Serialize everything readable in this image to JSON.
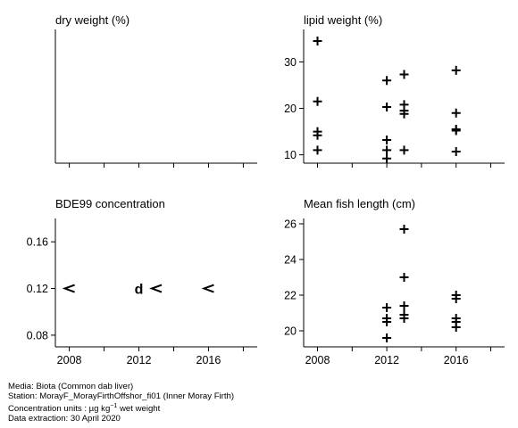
{
  "chart_data": [
    {
      "id": "dry",
      "type": "scatter",
      "title": "dry weight (%)",
      "xlim": [
        2007.2,
        2018.8
      ],
      "ylim": [
        0,
        1
      ],
      "x_ticks": [
        2008,
        2010,
        2012,
        2014,
        2016,
        2018
      ],
      "x_tick_labels": [],
      "y_ticks": [],
      "points": []
    },
    {
      "id": "lipid",
      "type": "scatter",
      "title": "lipid weight (%)",
      "xlim": [
        2007.2,
        2018.8
      ],
      "ylim": [
        8.2,
        37
      ],
      "x_ticks": [
        2008,
        2010,
        2012,
        2014,
        2016,
        2018
      ],
      "x_tick_labels": [],
      "y_ticks": [
        10,
        20,
        30
      ],
      "y_tick_labels": [
        "10",
        "20",
        "30"
      ],
      "points": [
        {
          "x": 2008,
          "y": 34.5,
          "symbol": "+"
        },
        {
          "x": 2008,
          "y": 21.5,
          "symbol": "+"
        },
        {
          "x": 2008,
          "y": 15.0,
          "symbol": "+"
        },
        {
          "x": 2008,
          "y": 14.2,
          "symbol": "+"
        },
        {
          "x": 2008,
          "y": 11.0,
          "symbol": "+"
        },
        {
          "x": 2012,
          "y": 26.0,
          "symbol": "+"
        },
        {
          "x": 2012,
          "y": 20.3,
          "symbol": "+"
        },
        {
          "x": 2012,
          "y": 13.2,
          "symbol": "+"
        },
        {
          "x": 2012,
          "y": 11.0,
          "symbol": "+"
        },
        {
          "x": 2012,
          "y": 9.2,
          "symbol": "+"
        },
        {
          "x": 2013,
          "y": 27.3,
          "symbol": "+"
        },
        {
          "x": 2013,
          "y": 20.8,
          "symbol": "+"
        },
        {
          "x": 2013,
          "y": 19.5,
          "symbol": "+"
        },
        {
          "x": 2013,
          "y": 18.8,
          "symbol": "+"
        },
        {
          "x": 2013,
          "y": 11.0,
          "symbol": "+"
        },
        {
          "x": 2016,
          "y": 28.2,
          "symbol": "+"
        },
        {
          "x": 2016,
          "y": 19.0,
          "symbol": "+"
        },
        {
          "x": 2016,
          "y": 15.5,
          "symbol": "+"
        },
        {
          "x": 2016,
          "y": 15.2,
          "symbol": "+"
        },
        {
          "x": 2016,
          "y": 10.7,
          "symbol": "+"
        }
      ]
    },
    {
      "id": "bde99",
      "type": "scatter",
      "title": "BDE99 concentration",
      "xlim": [
        2007.2,
        2018.8
      ],
      "ylim": [
        0.07,
        0.18
      ],
      "x_ticks": [
        2008,
        2010,
        2012,
        2014,
        2016,
        2018
      ],
      "x_tick_labels": [
        "2008",
        "",
        "2012",
        "",
        "2016",
        ""
      ],
      "y_ticks": [
        0.08,
        0.12,
        0.16
      ],
      "y_tick_labels": [
        "0.08",
        "0.12",
        "0.16"
      ],
      "points": [
        {
          "x": 2008,
          "y": 0.12,
          "symbol": "<"
        },
        {
          "x": 2012,
          "y": 0.12,
          "symbol": "d"
        },
        {
          "x": 2013,
          "y": 0.12,
          "symbol": "<"
        },
        {
          "x": 2016,
          "y": 0.12,
          "symbol": "<"
        }
      ]
    },
    {
      "id": "length",
      "type": "scatter",
      "title": "Mean fish length (cm)",
      "xlim": [
        2007.2,
        2018.8
      ],
      "ylim": [
        19.1,
        26.3
      ],
      "x_ticks": [
        2008,
        2010,
        2012,
        2014,
        2016,
        2018
      ],
      "x_tick_labels": [
        "2008",
        "",
        "2012",
        "",
        "2016",
        ""
      ],
      "y_ticks": [
        20,
        22,
        24,
        26
      ],
      "y_tick_labels": [
        "20",
        "22",
        "24",
        "26"
      ],
      "points": [
        {
          "x": 2012,
          "y": 21.3,
          "symbol": "+"
        },
        {
          "x": 2012,
          "y": 20.7,
          "symbol": "+"
        },
        {
          "x": 2012,
          "y": 20.5,
          "symbol": "+"
        },
        {
          "x": 2012,
          "y": 19.6,
          "symbol": "+"
        },
        {
          "x": 2013,
          "y": 25.7,
          "symbol": "+"
        },
        {
          "x": 2013,
          "y": 23.0,
          "symbol": "+"
        },
        {
          "x": 2013,
          "y": 21.4,
          "symbol": "+"
        },
        {
          "x": 2013,
          "y": 20.9,
          "symbol": "+"
        },
        {
          "x": 2013,
          "y": 20.7,
          "symbol": "+"
        },
        {
          "x": 2016,
          "y": 22.0,
          "symbol": "+"
        },
        {
          "x": 2016,
          "y": 21.8,
          "symbol": "+"
        },
        {
          "x": 2016,
          "y": 20.7,
          "symbol": "+"
        },
        {
          "x": 2016,
          "y": 20.5,
          "symbol": "+"
        },
        {
          "x": 2016,
          "y": 20.2,
          "symbol": "+"
        }
      ]
    }
  ],
  "footer": {
    "media": "Media: Biota (Common dab liver)",
    "station": "Station: MorayF_MorayFirthOffshor_fi01 (Inner Moray Firth)",
    "units_prefix": "Concentration units : µg kg",
    "units_exponent": "−1",
    "units_suffix": " wet weight",
    "extraction": "Data extraction: 30 April 2020"
  }
}
